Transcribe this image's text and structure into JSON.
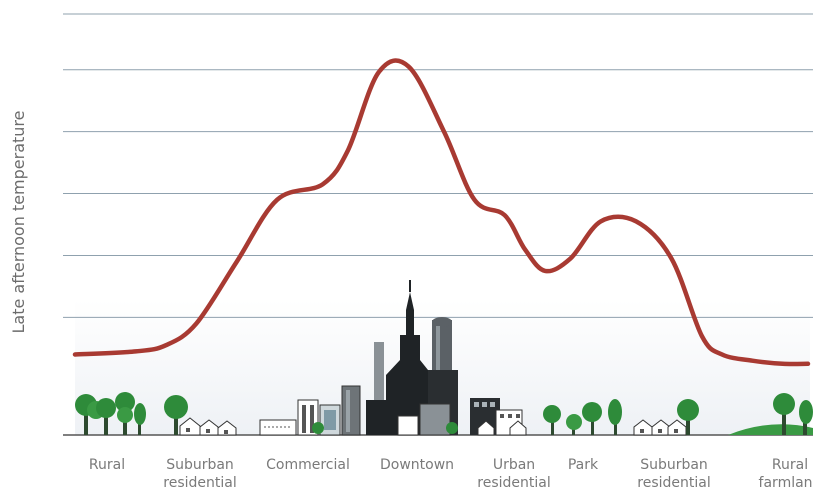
{
  "chart_data": {
    "type": "line",
    "title": "",
    "ylabel": "Late afternoon temperature",
    "xlabel": "",
    "categories": [
      "Rural",
      "Suburban residential",
      "Commercial",
      "Downtown",
      "Urban residential",
      "Park",
      "Suburban residential",
      "Rural farmland"
    ],
    "category_lines": [
      [
        "Rural"
      ],
      [
        "Suburban",
        "residential"
      ],
      [
        "Commercial"
      ],
      [
        "Downtown"
      ],
      [
        "Urban",
        "residential"
      ],
      [
        "Park"
      ],
      [
        "Suburban",
        "residential"
      ],
      [
        "Rural",
        "farmland"
      ]
    ],
    "ylim": [
      0,
      6.8
    ],
    "grid": true,
    "gridlines": [
      1.9,
      2.9,
      3.9,
      4.9,
      5.9
    ],
    "series": [
      {
        "color": "#a83a32",
        "x": [
          0.0,
          0.6,
          0.9,
          1.2,
          1.6,
          2.0,
          2.45,
          2.7,
          3.0,
          3.3,
          3.65,
          3.95,
          4.25,
          4.45,
          4.65,
          4.9,
          5.2,
          5.55,
          5.9,
          6.2,
          6.4,
          6.7,
          7.0,
          7.25
        ],
        "values": [
          1.3,
          1.35,
          1.45,
          1.8,
          2.8,
          3.8,
          4.05,
          4.6,
          5.85,
          5.95,
          4.9,
          3.8,
          3.55,
          3.0,
          2.65,
          2.85,
          3.45,
          3.45,
          2.85,
          1.6,
          1.3,
          1.2,
          1.15,
          1.15
        ]
      }
    ]
  },
  "illustration": {
    "description_icons": [
      "tree-icon",
      "house-icon",
      "office-building-icon",
      "skyscraper-icon",
      "apartment-icon"
    ]
  }
}
